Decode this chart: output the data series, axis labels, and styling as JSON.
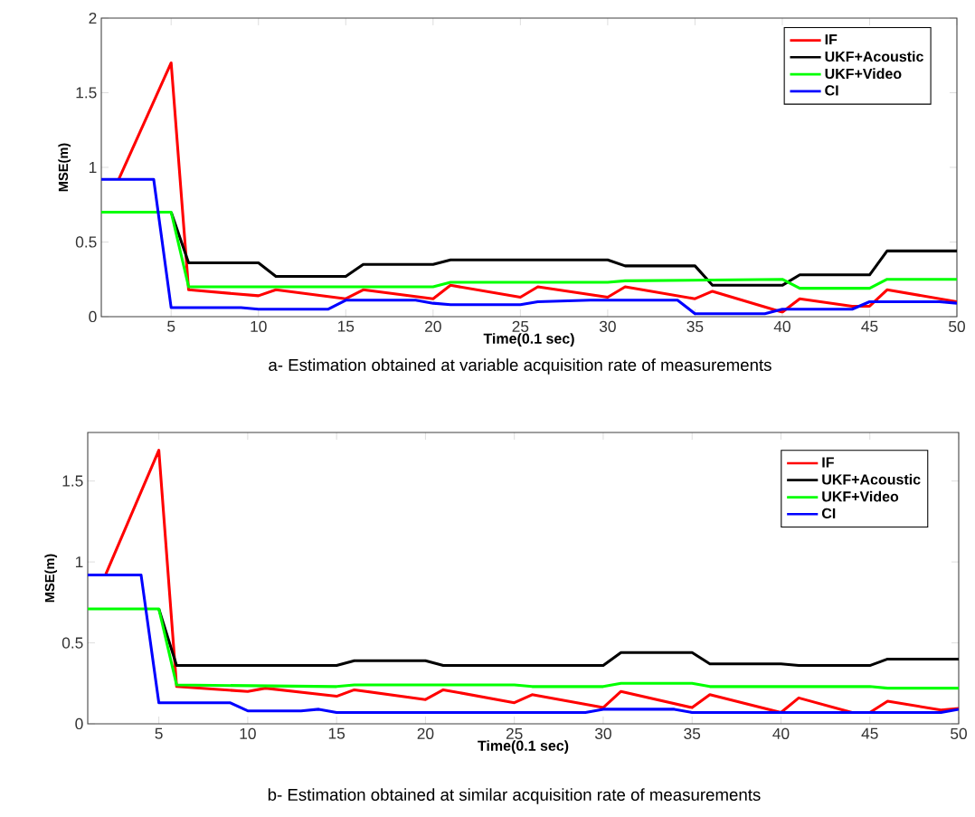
{
  "chart_data": [
    {
      "type": "line",
      "xlabel": "Time(0.1 sec)",
      "ylabel": "MSE(m)",
      "xlim": [
        1,
        50
      ],
      "ylim": [
        0,
        2
      ],
      "xticks": [
        5,
        10,
        15,
        20,
        25,
        30,
        35,
        40,
        45,
        50
      ],
      "yticks": [
        0,
        0.5,
        1,
        1.5,
        2
      ],
      "legend": "top right",
      "annotations": [
        "a- Estimation obtained at variable acquisition rate of measurements"
      ],
      "series": [
        {
          "name": "IF",
          "color": "#ff0000",
          "x": [
            2,
            5,
            6,
            10,
            11,
            15,
            16,
            20,
            21,
            25,
            26,
            30,
            31,
            35,
            36,
            40,
            41,
            44,
            45,
            46,
            50
          ],
          "values": [
            0.92,
            1.7,
            0.18,
            0.14,
            0.18,
            0.12,
            0.18,
            0.12,
            0.21,
            0.13,
            0.2,
            0.13,
            0.2,
            0.12,
            0.17,
            0.03,
            0.12,
            0.07,
            0.07,
            0.18,
            0.1
          ]
        },
        {
          "name": "UKF+Acoustic",
          "color": "#000000",
          "x": [
            5,
            6,
            10,
            11,
            15,
            16,
            20,
            21,
            30,
            31,
            35,
            36,
            40,
            41,
            45,
            46,
            50
          ],
          "values": [
            0.7,
            0.36,
            0.36,
            0.27,
            0.27,
            0.35,
            0.35,
            0.38,
            0.38,
            0.34,
            0.34,
            0.21,
            0.21,
            0.28,
            0.28,
            0.44,
            0.44
          ]
        },
        {
          "name": "UKF+Video",
          "color": "#00ff00",
          "x": [
            1,
            5,
            6,
            20,
            21,
            30,
            31,
            40,
            41,
            45,
            46,
            50
          ],
          "values": [
            0.7,
            0.7,
            0.2,
            0.2,
            0.23,
            0.23,
            0.24,
            0.25,
            0.19,
            0.19,
            0.25,
            0.25
          ]
        },
        {
          "name": "CI",
          "color": "#0000ff",
          "x": [
            1,
            4,
            5,
            9,
            10,
            14,
            15,
            19,
            20,
            21,
            25,
            26,
            29,
            34,
            35,
            39,
            40,
            44,
            45,
            49,
            50
          ],
          "values": [
            0.92,
            0.92,
            0.06,
            0.06,
            0.05,
            0.05,
            0.11,
            0.11,
            0.09,
            0.08,
            0.08,
            0.1,
            0.11,
            0.11,
            0.02,
            0.02,
            0.05,
            0.05,
            0.1,
            0.1,
            0.09
          ]
        }
      ]
    },
    {
      "type": "line",
      "xlabel": "Time(0.1 sec)",
      "ylabel": "MSE(m)",
      "xlim": [
        1,
        50
      ],
      "ylim": [
        0,
        1.8
      ],
      "xticks": [
        5,
        10,
        15,
        20,
        25,
        30,
        35,
        40,
        45,
        50
      ],
      "yticks": [
        0,
        0.5,
        1,
        1.5
      ],
      "legend": "top right",
      "annotations": [
        "b- Estimation obtained at similar acquisition rate of measurements"
      ],
      "series": [
        {
          "name": "IF",
          "color": "#ff0000",
          "x": [
            2,
            5,
            6,
            10,
            11,
            15,
            16,
            20,
            21,
            25,
            26,
            30,
            31,
            35,
            36,
            40,
            41,
            44,
            45,
            46,
            49,
            50
          ],
          "values": [
            0.92,
            1.69,
            0.23,
            0.2,
            0.22,
            0.17,
            0.21,
            0.15,
            0.21,
            0.13,
            0.18,
            0.1,
            0.2,
            0.1,
            0.18,
            0.07,
            0.16,
            0.07,
            0.07,
            0.14,
            0.085,
            0.095
          ]
        },
        {
          "name": "UKF+Acoustic",
          "color": "#000000",
          "x": [
            5,
            6,
            15,
            16,
            20,
            21,
            30,
            31,
            35,
            36,
            40,
            41,
            45,
            46,
            50
          ],
          "values": [
            0.71,
            0.36,
            0.36,
            0.39,
            0.39,
            0.36,
            0.36,
            0.44,
            0.44,
            0.37,
            0.37,
            0.36,
            0.36,
            0.4,
            0.4
          ]
        },
        {
          "name": "UKF+Video",
          "color": "#00ff00",
          "x": [
            1,
            5,
            6,
            15,
            16,
            25,
            26,
            30,
            31,
            35,
            36,
            45,
            46,
            50
          ],
          "values": [
            0.71,
            0.71,
            0.24,
            0.23,
            0.24,
            0.24,
            0.23,
            0.23,
            0.25,
            0.25,
            0.23,
            0.23,
            0.22,
            0.22
          ]
        },
        {
          "name": "CI",
          "color": "#0000ff",
          "x": [
            1,
            4,
            5,
            9,
            10,
            13,
            14,
            15,
            29,
            30,
            34,
            35,
            49,
            50
          ],
          "values": [
            0.92,
            0.92,
            0.13,
            0.13,
            0.08,
            0.08,
            0.09,
            0.07,
            0.07,
            0.09,
            0.09,
            0.07,
            0.07,
            0.09
          ]
        }
      ]
    }
  ]
}
